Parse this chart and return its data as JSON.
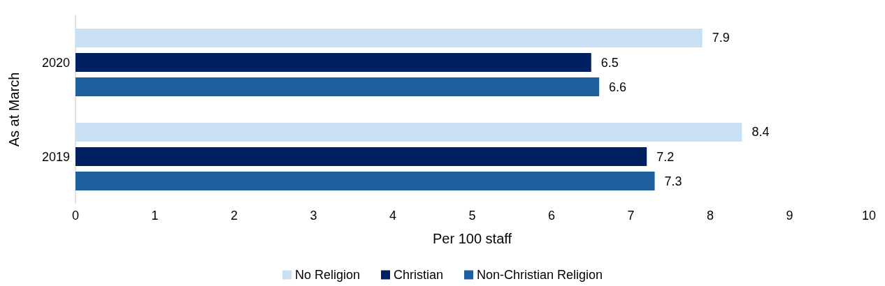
{
  "chart_data": {
    "type": "bar",
    "orientation": "horizontal",
    "categories": [
      "2020",
      "2019"
    ],
    "series": [
      {
        "name": "No Religion",
        "color": "#c9dff4",
        "values": [
          7.9,
          8.4
        ]
      },
      {
        "name": "Christian",
        "color": "#002060",
        "values": [
          6.5,
          7.2
        ]
      },
      {
        "name": "Non-Christian Religion",
        "color": "#1f5f9e",
        "values": [
          6.6,
          7.3
        ]
      }
    ],
    "xlabel": "Per 100 staff",
    "ylabel": "As at March",
    "xlim": [
      0,
      10
    ],
    "xticks": [
      0,
      1,
      2,
      3,
      4,
      5,
      6,
      7,
      8,
      9,
      10
    ],
    "data_labels": true,
    "grid": false,
    "legend": "bottom"
  }
}
